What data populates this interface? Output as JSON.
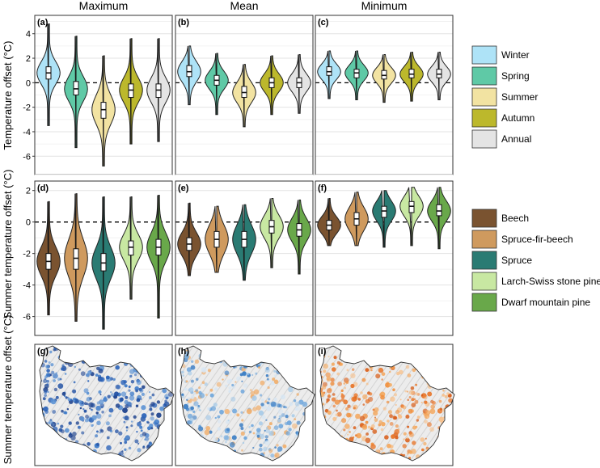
{
  "column_titles": [
    "Maximum",
    "Mean",
    "Minimum"
  ],
  "row_labels": {
    "top": "Temperature offset (°C)",
    "middle": "Summer temperature offset (°C)",
    "bottom": "Summer temperature offset (°C)"
  },
  "legends": {
    "season": [
      {
        "label": "Winter",
        "color": "#aee3f7"
      },
      {
        "label": "Spring",
        "color": "#5fc9a6"
      },
      {
        "label": "Summer",
        "color": "#f2e3a2"
      },
      {
        "label": "Autumn",
        "color": "#bcb82c"
      },
      {
        "label": "Annual",
        "color": "#e4e4e4"
      }
    ],
    "forest": [
      {
        "label": "Beech",
        "color": "#7a5330"
      },
      {
        "label": "Spruce-fir-beech",
        "color": "#cf9a5e"
      },
      {
        "label": "Spruce",
        "color": "#2a7b73"
      },
      {
        "label": "Larch-Swiss stone pine",
        "color": "#c8e8a2"
      },
      {
        "label": "Dwarf mountain pine",
        "color": "#69a84a"
      }
    ]
  },
  "map_panels": [
    {
      "tag": "(g)",
      "palette": "blue"
    },
    {
      "tag": "(h)",
      "palette": "mixed"
    },
    {
      "tag": "(i)",
      "palette": "orange"
    }
  ],
  "chart_data": [
    {
      "tag": "(a)",
      "type": "violin",
      "column": "Maximum",
      "ylim": [
        -7.5,
        5.5
      ],
      "ticks": [
        -6,
        -4,
        -2,
        0,
        2,
        4
      ],
      "categories": [
        "Winter",
        "Spring",
        "Summer",
        "Autumn",
        "Annual"
      ],
      "series": [
        {
          "name": "Winter",
          "median": 0.8,
          "q1": 0.3,
          "q3": 1.3,
          "min": -3.5,
          "max": 4.8
        },
        {
          "name": "Spring",
          "median": -0.5,
          "q1": -1.0,
          "q3": 0.1,
          "min": -5.3,
          "max": 3.8
        },
        {
          "name": "Summer",
          "median": -2.2,
          "q1": -2.9,
          "q3": -1.6,
          "min": -6.8,
          "max": 2.2
        },
        {
          "name": "Autumn",
          "median": -0.6,
          "q1": -1.2,
          "q3": -0.1,
          "min": -5.0,
          "max": 3.6
        },
        {
          "name": "Annual",
          "median": -0.6,
          "q1": -1.2,
          "q3": -0.1,
          "min": -4.8,
          "max": 3.6
        }
      ]
    },
    {
      "tag": "(b)",
      "type": "violin",
      "column": "Mean",
      "ylim": [
        -7.5,
        5.5
      ],
      "ticks": [
        -6,
        -4,
        -2,
        0,
        2,
        4
      ],
      "categories": [
        "Winter",
        "Spring",
        "Summer",
        "Autumn",
        "Annual"
      ],
      "series": [
        {
          "name": "Winter",
          "median": 0.9,
          "q1": 0.5,
          "q3": 1.4,
          "min": -1.8,
          "max": 3.0
        },
        {
          "name": "Spring",
          "median": 0.2,
          "q1": -0.2,
          "q3": 0.6,
          "min": -2.6,
          "max": 2.4
        },
        {
          "name": "Summer",
          "median": -0.8,
          "q1": -1.2,
          "q3": -0.3,
          "min": -3.6,
          "max": 1.5
        },
        {
          "name": "Autumn",
          "median": 0.0,
          "q1": -0.4,
          "q3": 0.4,
          "min": -2.6,
          "max": 2.2
        },
        {
          "name": "Annual",
          "median": 0.0,
          "q1": -0.4,
          "q3": 0.4,
          "min": -2.5,
          "max": 2.3
        }
      ]
    },
    {
      "tag": "(c)",
      "type": "violin",
      "column": "Minimum",
      "ylim": [
        -7.5,
        5.5
      ],
      "ticks": [
        -6,
        -4,
        -2,
        0,
        2,
        4
      ],
      "categories": [
        "Winter",
        "Spring",
        "Summer",
        "Autumn",
        "Annual"
      ],
      "series": [
        {
          "name": "Winter",
          "median": 0.9,
          "q1": 0.6,
          "q3": 1.3,
          "min": -1.3,
          "max": 2.6
        },
        {
          "name": "Spring",
          "median": 0.8,
          "q1": 0.4,
          "q3": 1.1,
          "min": -1.4,
          "max": 2.6
        },
        {
          "name": "Summer",
          "median": 0.6,
          "q1": 0.3,
          "q3": 1.0,
          "min": -1.6,
          "max": 2.3
        },
        {
          "name": "Autumn",
          "median": 0.7,
          "q1": 0.4,
          "q3": 1.1,
          "min": -1.5,
          "max": 2.5
        },
        {
          "name": "Annual",
          "median": 0.7,
          "q1": 0.4,
          "q3": 1.1,
          "min": -1.4,
          "max": 2.5
        }
      ]
    },
    {
      "tag": "(d)",
      "type": "violin",
      "column": "Maximum",
      "ylim": [
        -7.2,
        2.6
      ],
      "ticks": [
        -6,
        -4,
        -2,
        0,
        2
      ],
      "categories": [
        "Beech",
        "Spruce-fir-beech",
        "Spruce",
        "Larch-Swiss stone pine",
        "Dwarf mountain pine"
      ],
      "series": [
        {
          "name": "Beech",
          "median": -2.5,
          "q1": -3.0,
          "q3": -2.0,
          "min": -5.9,
          "max": 1.3
        },
        {
          "name": "Spruce-fir-beech",
          "median": -2.3,
          "q1": -3.0,
          "q3": -1.7,
          "min": -6.3,
          "max": 1.8
        },
        {
          "name": "Spruce",
          "median": -2.6,
          "q1": -3.1,
          "q3": -2.0,
          "min": -6.8,
          "max": 1.6
        },
        {
          "name": "Larch-Swiss stone pine",
          "median": -1.6,
          "q1": -2.1,
          "q3": -1.2,
          "min": -4.9,
          "max": 1.6
        },
        {
          "name": "Dwarf mountain pine",
          "median": -1.6,
          "q1": -2.1,
          "q3": -1.1,
          "min": -6.1,
          "max": 1.7
        }
      ]
    },
    {
      "tag": "(e)",
      "type": "violin",
      "column": "Mean",
      "ylim": [
        -7.2,
        2.6
      ],
      "ticks": [
        -6,
        -4,
        -2,
        0,
        2
      ],
      "categories": [
        "Beech",
        "Spruce-fir-beech",
        "Spruce",
        "Larch-Swiss stone pine",
        "Dwarf mountain pine"
      ],
      "series": [
        {
          "name": "Beech",
          "median": -1.4,
          "q1": -1.8,
          "q3": -1.0,
          "min": -3.4,
          "max": 1.2
        },
        {
          "name": "Spruce-fir-beech",
          "median": -1.1,
          "q1": -1.6,
          "q3": -0.6,
          "min": -3.2,
          "max": 1.0
        },
        {
          "name": "Spruce",
          "median": -1.1,
          "q1": -1.6,
          "q3": -0.6,
          "min": -3.7,
          "max": 1.1
        },
        {
          "name": "Larch-Swiss stone pine",
          "median": -0.3,
          "q1": -0.7,
          "q3": 0.1,
          "min": -2.9,
          "max": 1.5
        },
        {
          "name": "Dwarf mountain pine",
          "median": -0.5,
          "q1": -0.9,
          "q3": -0.1,
          "min": -3.3,
          "max": 1.4
        }
      ]
    },
    {
      "tag": "(f)",
      "type": "violin",
      "column": "Minimum",
      "ylim": [
        -7.2,
        2.6
      ],
      "ticks": [
        -6,
        -4,
        -2,
        0,
        2
      ],
      "categories": [
        "Beech",
        "Spruce-fir-beech",
        "Spruce",
        "Larch-Swiss stone pine",
        "Dwarf mountain pine"
      ],
      "series": [
        {
          "name": "Beech",
          "median": -0.2,
          "q1": -0.5,
          "q3": 0.1,
          "min": -1.5,
          "max": 1.5
        },
        {
          "name": "Spruce-fir-beech",
          "median": 0.2,
          "q1": -0.2,
          "q3": 0.6,
          "min": -1.5,
          "max": 1.9
        },
        {
          "name": "Spruce",
          "median": 0.7,
          "q1": 0.3,
          "q3": 1.0,
          "min": -1.6,
          "max": 2.0
        },
        {
          "name": "Larch-Swiss stone pine",
          "median": 1.0,
          "q1": 0.6,
          "q3": 1.3,
          "min": -1.5,
          "max": 2.2
        },
        {
          "name": "Dwarf mountain pine",
          "median": 0.7,
          "q1": 0.4,
          "q3": 1.1,
          "min": -1.7,
          "max": 2.2
        }
      ]
    }
  ]
}
